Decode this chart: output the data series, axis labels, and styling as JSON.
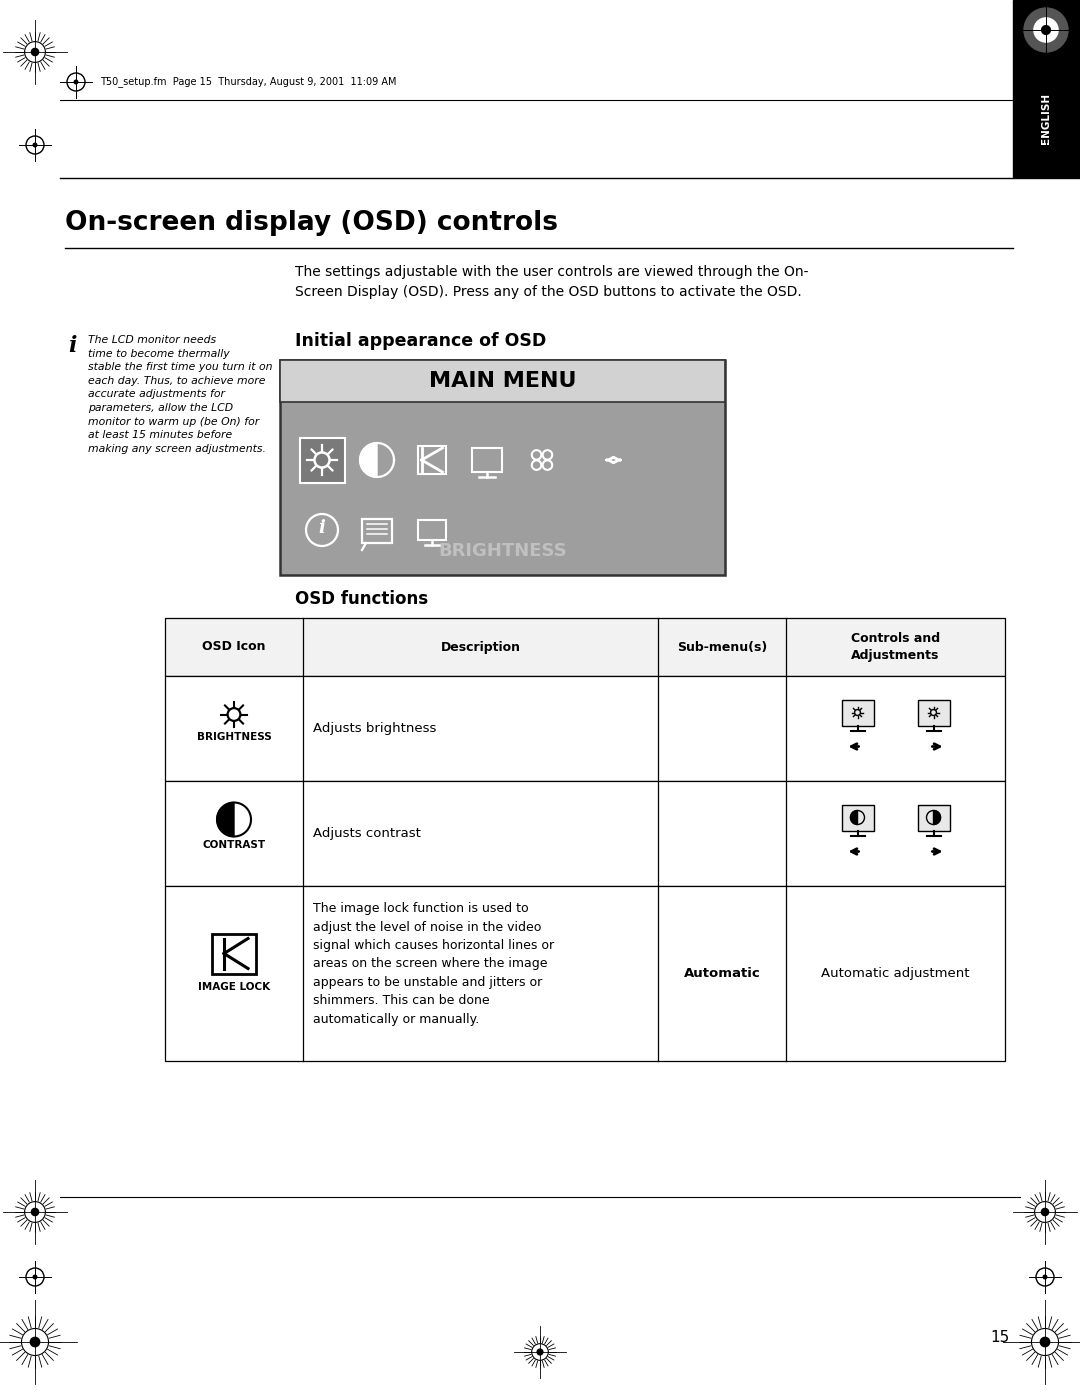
{
  "page_title": "On-screen display (OSD) controls",
  "header_text": "T50_setup.fm  Page 15  Thursday, August 9, 2001  11:09 AM",
  "body_text": "The settings adjustable with the user controls are viewed through the On-\nScreen Display (OSD). Press any of the OSD buttons to activate the OSD.",
  "note_text": "The LCD monitor needs\ntime to become thermally\nstable the first time you turn it on\neach day. Thus, to achieve more\naccurate adjustments for\nparameters, allow the LCD\nmonitor to warm up (be On) for\nat least 15 minutes before\nmaking any screen adjustments.",
  "initial_osd_title": "Initial appearance of OSD",
  "main_menu_title": "MAIN MENU",
  "brightness_label": "BRIGHTNESS",
  "osd_functions_title": "OSD functions",
  "table_headers": [
    "OSD Icon",
    "Description",
    "Sub-menu(s)",
    "Controls and\nAdjustments"
  ],
  "table_row1_desc": "Adjusts brightness",
  "table_row1_icon": "BRIGHTNESS",
  "table_row2_desc": "Adjusts contrast",
  "table_row2_icon": "CONTRAST",
  "table_row3_icon": "IMAGE LOCK",
  "table_row3_submenu": "Automatic",
  "table_row3_controls": "Automatic adjustment",
  "table_row3_desc": "The image lock function is used to\nadjust the level of noise in the video\nsignal which causes horizontal lines or\nareas on the screen where the image\nappears to be unstable and jitters or\nshimmers. This can be done\nautomatically or manually.",
  "bg_color": "#ffffff",
  "page_number": "15",
  "english_label": "ENGLISH"
}
